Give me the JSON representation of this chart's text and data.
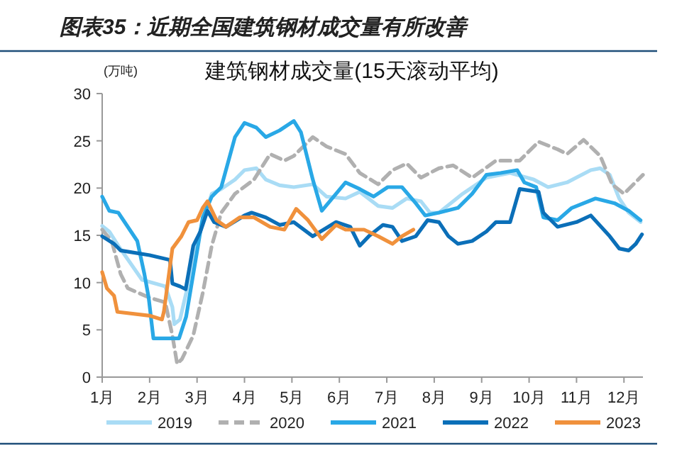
{
  "chart_data": {
    "type": "line",
    "title": "图表35：近期全国建筑钢材成交量有所改善",
    "subtitle": "建筑钢材成交量(15天滚动平均)",
    "ylabel": "(万吨)",
    "xlim": [
      1,
      12.4
    ],
    "ylim": [
      0,
      30
    ],
    "xticks": [
      {
        "value": 1,
        "label": "1月"
      },
      {
        "value": 2,
        "label": "2月"
      },
      {
        "value": 3,
        "label": "3月"
      },
      {
        "value": 4,
        "label": "4月"
      },
      {
        "value": 5,
        "label": "5月"
      },
      {
        "value": 6,
        "label": "6月"
      },
      {
        "value": 7,
        "label": "7月"
      },
      {
        "value": 8,
        "label": "8月"
      },
      {
        "value": 9,
        "label": "9月"
      },
      {
        "value": 10,
        "label": "10月"
      },
      {
        "value": 11,
        "label": "11月"
      },
      {
        "value": 12,
        "label": "12月"
      }
    ],
    "yticks": [
      0,
      5,
      10,
      15,
      20,
      25,
      30
    ],
    "legend": "bottom",
    "series": [
      {
        "name": "2019",
        "color": "#a9dcf5",
        "x": [
          1,
          1.15,
          1.34,
          1.84,
          2.33,
          2.48,
          2.52,
          2.64,
          2.77,
          2.92,
          3.12,
          3.31,
          3.51,
          3.8,
          4.0,
          4.25,
          4.45,
          4.74,
          5.04,
          5.44,
          5.73,
          6.13,
          6.43,
          6.82,
          7.12,
          7.42,
          7.72,
          7.91,
          8.1,
          8.6,
          9.1,
          9.6,
          10.1,
          10.4,
          10.8,
          11.3,
          11.5,
          11.7,
          11.9,
          12.1,
          12.35
        ],
        "values": [
          16,
          15.4,
          13.9,
          10.3,
          9.6,
          7.4,
          5.6,
          6.1,
          8.9,
          12.9,
          16.4,
          19.4,
          19.9,
          20.9,
          21.9,
          22.1,
          20.9,
          20.3,
          20.1,
          20.4,
          19.1,
          18.9,
          19.6,
          18.1,
          17.9,
          18.9,
          18.6,
          17.4,
          17.4,
          19.4,
          21.1,
          21.6,
          20.9,
          20.1,
          20.6,
          21.9,
          22.1,
          21.4,
          18.9,
          17.4,
          16.4
        ]
      },
      {
        "name": "2020",
        "color": "#b0b0b0",
        "line_style": "dashed",
        "x": [
          1,
          1.2,
          1.39,
          1.54,
          2.0,
          2.33,
          2.48,
          2.58,
          2.68,
          2.92,
          3.12,
          3.31,
          3.51,
          3.8,
          4.2,
          4.54,
          4.84,
          5.04,
          5.44,
          5.73,
          6.13,
          6.43,
          6.82,
          7.12,
          7.42,
          7.72,
          8.1,
          8.4,
          8.8,
          9.3,
          9.8,
          10.2,
          10.6,
          10.8,
          11.15,
          11.5,
          11.75,
          12.0,
          12.2,
          12.4
        ],
        "values": [
          15.6,
          14.4,
          10.9,
          9.4,
          8.4,
          7.9,
          4.4,
          1.4,
          1.9,
          4.4,
          8.9,
          13.9,
          17.4,
          19.4,
          20.9,
          23.6,
          22.9,
          23.4,
          25.4,
          24.4,
          23.6,
          21.6,
          20.4,
          21.9,
          22.6,
          21.1,
          22.1,
          22.4,
          21.1,
          22.9,
          22.9,
          24.9,
          24.1,
          23.6,
          25.1,
          23.4,
          20.4,
          19.4,
          20.4,
          21.4
        ]
      },
      {
        "name": "2021",
        "color": "#29a8e6",
        "x": [
          1,
          1.15,
          1.34,
          1.54,
          1.74,
          1.89,
          1.98,
          2.08,
          2.33,
          2.62,
          2.77,
          2.92,
          3.12,
          3.31,
          3.51,
          3.8,
          4.0,
          4.25,
          4.45,
          4.74,
          5.04,
          5.19,
          5.44,
          5.63,
          5.93,
          6.13,
          6.43,
          6.72,
          7.02,
          7.32,
          7.61,
          7.81,
          8.1,
          8.5,
          8.8,
          9.1,
          9.4,
          9.75,
          9.9,
          10.15,
          10.3,
          10.6,
          10.9,
          11.4,
          11.8,
          12.1,
          12.35
        ],
        "values": [
          19.1,
          17.6,
          17.4,
          15.9,
          14.4,
          10.9,
          8.4,
          4.1,
          4.1,
          4.1,
          6.4,
          10.9,
          16.9,
          19.1,
          20.1,
          25.4,
          26.9,
          26.4,
          25.4,
          26.1,
          27.1,
          25.9,
          20.9,
          17.6,
          19.4,
          20.6,
          19.9,
          19.1,
          20.1,
          20.1,
          18.4,
          17.1,
          17.4,
          17.9,
          19.4,
          21.4,
          21.6,
          21.9,
          20.6,
          20.1,
          16.9,
          16.6,
          17.9,
          18.9,
          18.4,
          17.6,
          16.6
        ]
      },
      {
        "name": "2022",
        "color": "#0b6fb8",
        "x": [
          1,
          1.25,
          1.39,
          2,
          2.43,
          2.48,
          2.64,
          2.76,
          2.92,
          3.07,
          3.22,
          3.36,
          3.61,
          4.0,
          4.15,
          4.45,
          4.74,
          5.04,
          5.44,
          5.93,
          6.23,
          6.43,
          6.62,
          6.92,
          7.12,
          7.32,
          7.61,
          7.86,
          8.1,
          8.3,
          8.5,
          8.8,
          9.1,
          9.3,
          9.6,
          9.8,
          10.2,
          10.3,
          10.6,
          11.0,
          11.3,
          11.7,
          11.9,
          12.1,
          12.25,
          12.38
        ],
        "values": [
          14.9,
          14.1,
          13.4,
          12.9,
          12.4,
          9.9,
          9.6,
          9.3,
          13.9,
          15.4,
          17.6,
          16.4,
          15.9,
          17.1,
          17.4,
          16.9,
          16.1,
          16.4,
          14.9,
          16.4,
          15.9,
          13.9,
          14.9,
          16.1,
          15.9,
          14.4,
          14.9,
          16.6,
          16.4,
          14.9,
          14.1,
          14.4,
          15.4,
          16.4,
          16.4,
          19.9,
          19.6,
          17.4,
          15.9,
          16.4,
          17.1,
          14.9,
          13.6,
          13.4,
          14.1,
          15.1
        ]
      },
      {
        "name": "2023",
        "color": "#f0913c",
        "x": [
          1,
          1.1,
          1.25,
          1.32,
          2,
          2.26,
          2.3,
          2.48,
          2.67,
          2.82,
          3.0,
          3.12,
          3.22,
          3.41,
          3.61,
          3.9,
          4.2,
          4.54,
          4.84,
          5.09,
          5.34,
          5.63,
          5.93,
          6.13,
          6.52,
          6.82,
          7.12,
          7.32,
          7.56
        ],
        "values": [
          11.1,
          9.4,
          8.6,
          6.9,
          6.5,
          6.1,
          6.9,
          13.6,
          14.9,
          16.4,
          16.6,
          17.9,
          18.6,
          16.6,
          15.9,
          16.9,
          16.9,
          15.9,
          15.6,
          17.8,
          16.6,
          14.6,
          16.1,
          15.6,
          15.6,
          14.9,
          14.1,
          14.9,
          15.6
        ]
      }
    ]
  }
}
